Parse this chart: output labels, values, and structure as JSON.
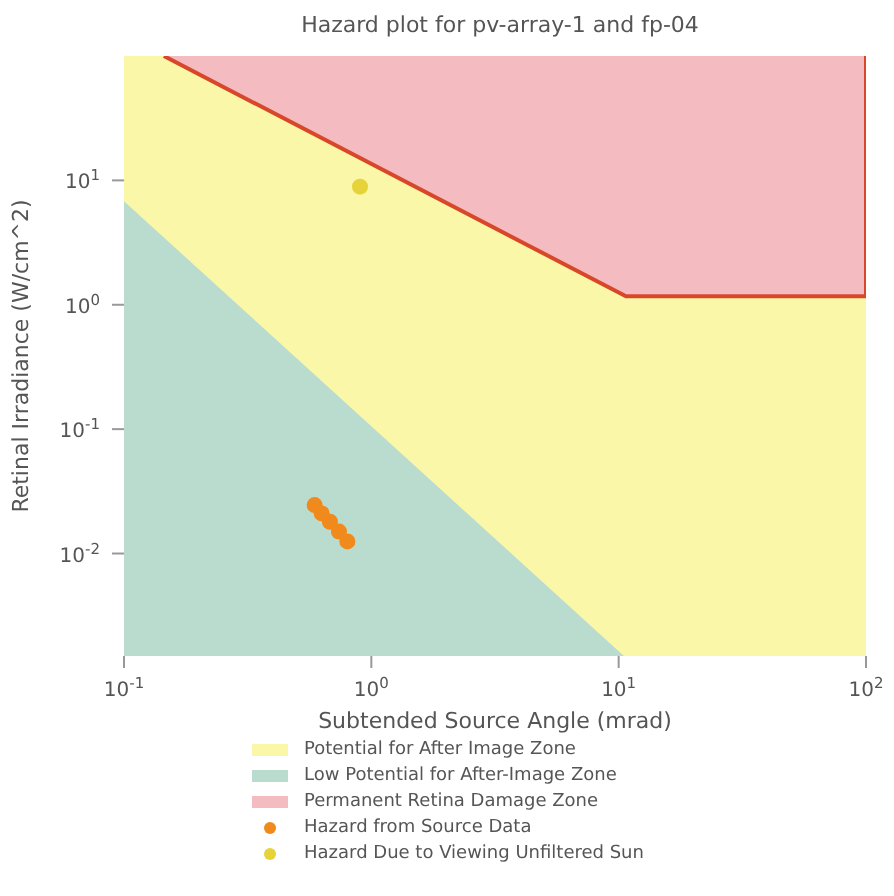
{
  "chart_data": {
    "type": "area",
    "title": "Hazard plot for pv-array-1 and fp-04",
    "xlabel": "Subtended Source Angle (mrad)",
    "ylabel": "Retinal Irradiance (W/cm^2)",
    "log": "xy",
    "xlim": [
      0.1,
      100
    ],
    "ylim": [
      0.0015,
      100
    ],
    "xticks": [
      {
        "value": 0.1,
        "label": "10$^{-1}$"
      },
      {
        "value": 1,
        "label": "10$^{0}$"
      },
      {
        "value": 10,
        "label": "10$^{1}$"
      },
      {
        "value": 100,
        "label": "10$^{2}$"
      }
    ],
    "yticks": [
      {
        "value": 0.01,
        "label": "10$^{-2}$"
      },
      {
        "value": 0.1,
        "label": "10$^{-1}$"
      },
      {
        "value": 1,
        "label": "10$^{0}$"
      },
      {
        "value": 10,
        "label": "10$^{1}$"
      }
    ],
    "grid": false,
    "legend": "bottom",
    "bands": [
      {
        "axis": "x",
        "from": 0.1,
        "to": 100,
        "label": "Potential for After Image Zone",
        "color": "#fbf7a8"
      }
    ],
    "series": [
      {
        "name": "Low Potential for After-Image Zone",
        "color": "#b9dccf",
        "x": [
          0.1,
          10.5
        ],
        "values": [
          6.8,
          0.0015
        ]
      },
      {
        "name": "Permanent Retina Damage Zone",
        "type": "area",
        "color": "#f4bcc0",
        "x": [
          0.145,
          10.7,
          100,
          100
        ],
        "values": [
          100,
          1.17,
          1.17,
          100
        ]
      },
      {
        "name": "Hazard from Source Data",
        "type": "scatter",
        "marker": "circle",
        "color": "#f08a1c",
        "x": [
          0.59,
          0.63,
          0.68,
          0.74,
          0.8
        ],
        "values": [
          0.0245,
          0.021,
          0.018,
          0.015,
          0.0125
        ]
      },
      {
        "name": "Hazard Due to Viewing Unfiltered Sun",
        "type": "scatter",
        "marker": "circle",
        "color": "#e6d33a",
        "x": [
          0.9
        ],
        "values": [
          8.9
        ]
      }
    ]
  }
}
